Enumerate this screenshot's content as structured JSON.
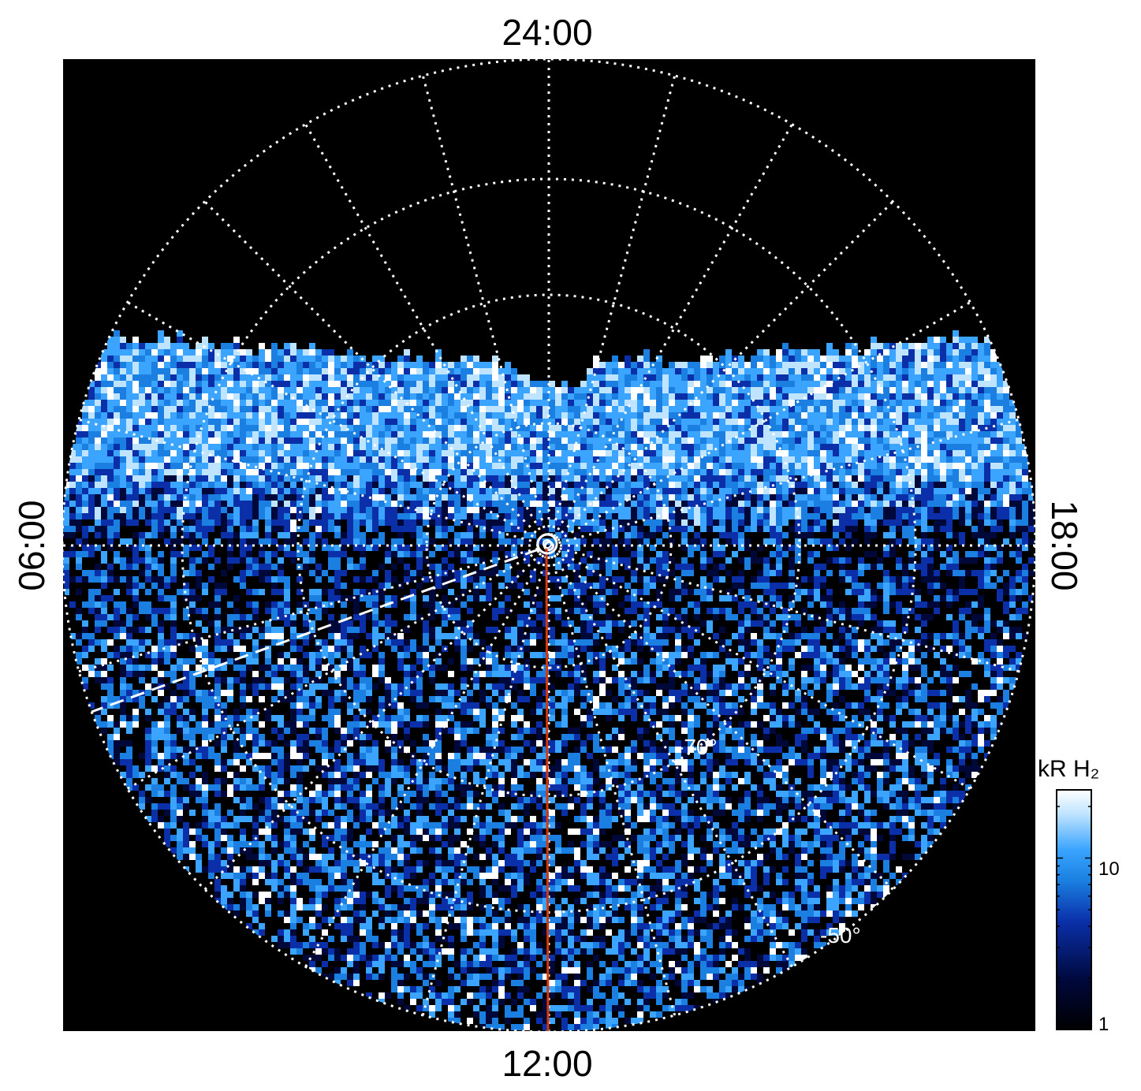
{
  "map": {
    "type": "polar-projection",
    "local_time_labels": {
      "top": "24:00",
      "bottom": "12:00",
      "left": "06:00",
      "right": "18:00"
    },
    "latitude_labels": [
      "-70°",
      "-50°"
    ],
    "grid": "dotted",
    "background_color": "#000000",
    "grid_color": "#ffffff",
    "reference_line_color": "#d4380d",
    "dashed_line_color": "#ffffff"
  },
  "colorbar": {
    "title": "kR H₂",
    "scale": "log",
    "range": [
      1,
      25
    ],
    "tick_labels": [
      "10",
      "1"
    ],
    "colors": [
      "#000000",
      "#00083a",
      "#0a2fa8",
      "#1a7fe0",
      "#3aa4ff",
      "#bfe4ff",
      "#ffffff"
    ]
  }
}
